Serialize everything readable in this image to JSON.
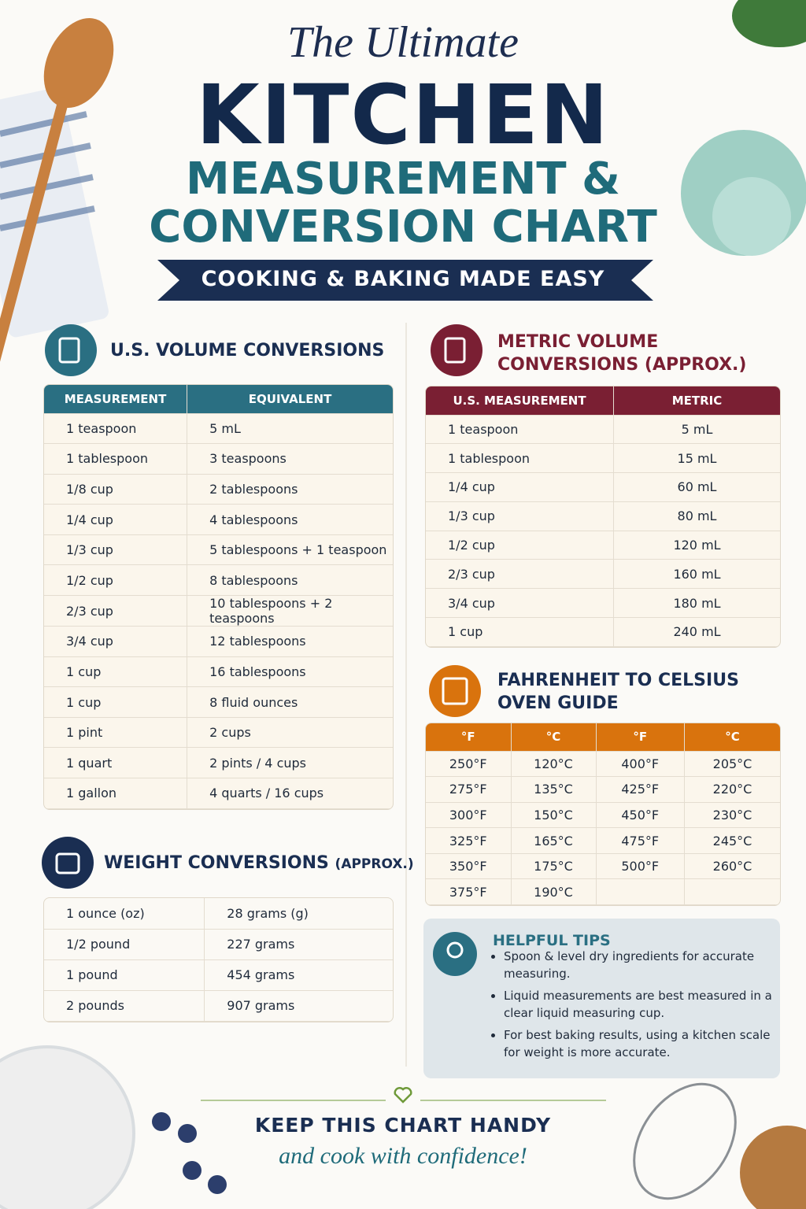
{
  "header": {
    "script_title": "The Ultimate",
    "title": "KITCHEN",
    "subtitle_line1": "MEASUREMENT &",
    "subtitle_line2": "CONVERSION CHART",
    "banner": "COOKING & BAKING MADE EASY"
  },
  "us_volume": {
    "title": "U.S. VOLUME CONVERSIONS",
    "headers": [
      "MEASUREMENT",
      "EQUIVALENT"
    ],
    "rows": [
      [
        "1 teaspoon",
        "5 mL"
      ],
      [
        "1 tablespoon",
        "3 teaspoons"
      ],
      [
        "1/8 cup",
        "2 tablespoons"
      ],
      [
        "1/4 cup",
        "4 tablespoons"
      ],
      [
        "1/3 cup",
        "5 tablespoons + 1 teaspoon"
      ],
      [
        "1/2 cup",
        "8 tablespoons"
      ],
      [
        "2/3 cup",
        "10 tablespoons + 2 teaspoons"
      ],
      [
        "3/4 cup",
        "12 tablespoons"
      ],
      [
        "1 cup",
        "16 tablespoons"
      ],
      [
        "1 cup",
        "8 fluid ounces"
      ],
      [
        "1 pint",
        "2 cups"
      ],
      [
        "1 quart",
        "2 pints / 4 cups"
      ],
      [
        "1 gallon",
        "4 quarts / 16 cups"
      ]
    ]
  },
  "weight": {
    "title": "WEIGHT CONVERSIONS",
    "title_note": "(APPROX.)",
    "rows": [
      [
        "1 ounce (oz)",
        "28 grams (g)"
      ],
      [
        "1/2 pound",
        "227 grams"
      ],
      [
        "1 pound",
        "454 grams"
      ],
      [
        "2 pounds",
        "907 grams"
      ]
    ]
  },
  "metric": {
    "title_line1": "METRIC VOLUME",
    "title_line2": "CONVERSIONS (APPROX.)",
    "headers": [
      "U.S. MEASUREMENT",
      "METRIC"
    ],
    "rows": [
      [
        "1 teaspoon",
        "5 mL"
      ],
      [
        "1 tablespoon",
        "15 mL"
      ],
      [
        "1/4 cup",
        "60 mL"
      ],
      [
        "1/3 cup",
        "80 mL"
      ],
      [
        "1/2 cup",
        "120 mL"
      ],
      [
        "2/3 cup",
        "160 mL"
      ],
      [
        "3/4 cup",
        "180 mL"
      ],
      [
        "1 cup",
        "240 mL"
      ]
    ]
  },
  "oven": {
    "title_line1": "FAHRENHEIT TO CELSIUS",
    "title_line2": "OVEN GUIDE",
    "headers": [
      "°F",
      "°C",
      "°F",
      "°C"
    ],
    "rows": [
      [
        "250°F",
        "120°C",
        "400°F",
        "205°C"
      ],
      [
        "275°F",
        "135°C",
        "425°F",
        "220°C"
      ],
      [
        "300°F",
        "150°C",
        "450°F",
        "230°C"
      ],
      [
        "325°F",
        "165°C",
        "475°F",
        "245°C"
      ],
      [
        "350°F",
        "175°C",
        "500°F",
        "260°C"
      ],
      [
        "375°F",
        "190°C"
      ]
    ]
  },
  "tips": {
    "title": "HELPFUL TIPS",
    "items": [
      "Spoon & level dry ingredients for accurate measuring.",
      "Liquid measurements are best measured in a clear liquid measuring cup.",
      "For best baking results, using a kitchen scale for weight is more accurate."
    ]
  },
  "footer": {
    "line1": "KEEP THIS CHART HANDY",
    "line2": "and cook with confidence!"
  }
}
